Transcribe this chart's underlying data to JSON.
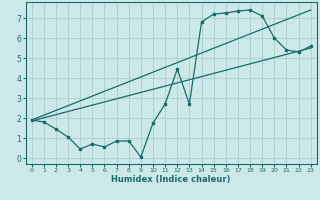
{
  "xlabel": "Humidex (Indice chaleur)",
  "bg_color": "#cde8e8",
  "grid_color": "#aacfcf",
  "line_color": "#1a6b6b",
  "xlim": [
    -0.5,
    23.5
  ],
  "ylim": [
    -0.3,
    7.8
  ],
  "xticks": [
    0,
    1,
    2,
    3,
    4,
    5,
    6,
    7,
    8,
    9,
    10,
    11,
    12,
    13,
    14,
    15,
    16,
    17,
    18,
    19,
    20,
    21,
    22,
    23
  ],
  "yticks": [
    0,
    1,
    2,
    3,
    4,
    5,
    6,
    7
  ],
  "line1_x": [
    0,
    1,
    2,
    3,
    4,
    5,
    6,
    7,
    8,
    9,
    10,
    11,
    12,
    13,
    14,
    15,
    16,
    17,
    18,
    19,
    20,
    21,
    22,
    23
  ],
  "line1_y": [
    1.9,
    1.8,
    1.45,
    1.05,
    0.45,
    0.7,
    0.55,
    0.85,
    0.85,
    0.05,
    1.75,
    2.7,
    4.45,
    2.7,
    6.8,
    7.2,
    7.25,
    7.35,
    7.4,
    7.1,
    6.0,
    5.4,
    5.3,
    5.6
  ],
  "line2_x": [
    0,
    23
  ],
  "line2_y": [
    1.9,
    7.4
  ],
  "line3_x": [
    0,
    23
  ],
  "line3_y": [
    1.85,
    5.5
  ]
}
